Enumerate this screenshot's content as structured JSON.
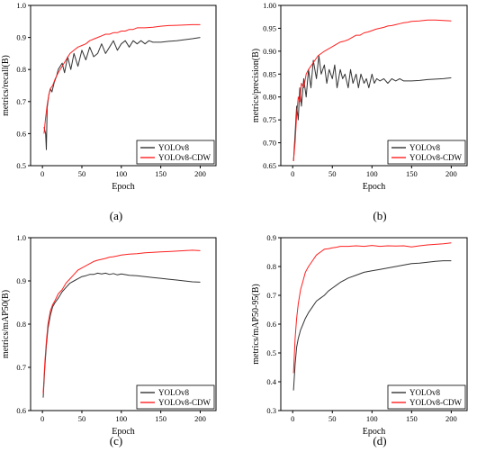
{
  "colors": {
    "yolov8": "#333333",
    "yolov8_cdw": "#ff2020",
    "axis": "#000000"
  },
  "chart_data": [
    {
      "type": "line",
      "panel_label": "(a)",
      "xlabel": "Epoch",
      "ylabel": "metrics/recall(B)",
      "xlim": [
        -15,
        220
      ],
      "ylim": [
        0.5,
        1.0
      ],
      "xticks": [
        0,
        50,
        100,
        150,
        200
      ],
      "xtick_labels": [
        "0",
        "50",
        "100",
        "150",
        "200"
      ],
      "yticks": [
        0.5,
        0.6,
        0.7,
        0.8,
        0.9,
        1.0
      ],
      "ytick_labels": [
        "0.5",
        "0.6",
        "0.7",
        "0.8",
        "0.9",
        "1.0"
      ],
      "legend_position": "bottom-right",
      "series": [
        {
          "name": "YOLOv8",
          "color": "#333333",
          "x": [
            2,
            4,
            5,
            6,
            8,
            10,
            12,
            15,
            18,
            20,
            25,
            28,
            32,
            36,
            40,
            45,
            50,
            55,
            60,
            65,
            70,
            75,
            80,
            85,
            90,
            95,
            100,
            105,
            110,
            115,
            120,
            125,
            130,
            135,
            140,
            150,
            160,
            170,
            180,
            190,
            200
          ],
          "y": [
            0.62,
            0.6,
            0.55,
            0.68,
            0.72,
            0.74,
            0.73,
            0.76,
            0.78,
            0.8,
            0.82,
            0.79,
            0.84,
            0.8,
            0.85,
            0.81,
            0.86,
            0.83,
            0.87,
            0.84,
            0.85,
            0.88,
            0.85,
            0.87,
            0.89,
            0.86,
            0.88,
            0.89,
            0.87,
            0.89,
            0.88,
            0.89,
            0.88,
            0.89,
            0.885,
            0.885,
            0.888,
            0.89,
            0.893,
            0.896,
            0.9
          ]
        },
        {
          "name": "YOLOv8-CDW",
          "color": "#ff2020",
          "x": [
            2,
            4,
            6,
            8,
            10,
            13,
            16,
            20,
            25,
            30,
            35,
            40,
            45,
            50,
            55,
            60,
            65,
            70,
            75,
            80,
            85,
            90,
            95,
            100,
            105,
            110,
            115,
            120,
            130,
            140,
            150,
            160,
            170,
            180,
            190,
            200
          ],
          "y": [
            0.6,
            0.65,
            0.69,
            0.72,
            0.74,
            0.75,
            0.77,
            0.79,
            0.81,
            0.83,
            0.85,
            0.86,
            0.87,
            0.875,
            0.88,
            0.89,
            0.895,
            0.9,
            0.905,
            0.91,
            0.91,
            0.915,
            0.915,
            0.92,
            0.92,
            0.925,
            0.925,
            0.93,
            0.93,
            0.932,
            0.935,
            0.937,
            0.938,
            0.939,
            0.94,
            0.94
          ]
        }
      ]
    },
    {
      "type": "line",
      "panel_label": "(b)",
      "xlabel": "Epoch",
      "ylabel": "metrics/precision(B)",
      "xlim": [
        -15,
        220
      ],
      "ylim": [
        0.65,
        1.0
      ],
      "xticks": [
        0,
        50,
        100,
        150,
        200
      ],
      "xtick_labels": [
        "0",
        "50",
        "100",
        "150",
        "200"
      ],
      "yticks": [
        0.65,
        0.7,
        0.75,
        0.8,
        0.85,
        0.9,
        0.95,
        1.0
      ],
      "ytick_labels": [
        "0.65",
        "0.70",
        "0.75",
        "0.80",
        "0.85",
        "0.90",
        "0.95",
        "1.00"
      ],
      "legend_position": "bottom-right",
      "series": [
        {
          "name": "YOLOv8",
          "color": "#333333",
          "x": [
            1,
            3,
            5,
            7,
            9,
            11,
            14,
            17,
            20,
            23,
            26,
            30,
            33,
            36,
            40,
            43,
            46,
            50,
            53,
            56,
            60,
            63,
            66,
            70,
            73,
            76,
            80,
            83,
            86,
            90,
            93,
            96,
            100,
            103,
            106,
            110,
            115,
            120,
            125,
            130,
            135,
            140,
            150,
            160,
            170,
            180,
            190,
            200
          ],
          "y": [
            0.66,
            0.72,
            0.78,
            0.75,
            0.82,
            0.78,
            0.84,
            0.8,
            0.86,
            0.82,
            0.88,
            0.84,
            0.89,
            0.85,
            0.87,
            0.83,
            0.86,
            0.84,
            0.87,
            0.82,
            0.86,
            0.84,
            0.85,
            0.82,
            0.86,
            0.83,
            0.85,
            0.82,
            0.85,
            0.83,
            0.84,
            0.82,
            0.85,
            0.83,
            0.84,
            0.835,
            0.84,
            0.83,
            0.84,
            0.835,
            0.84,
            0.835,
            0.835,
            0.836,
            0.838,
            0.839,
            0.84,
            0.842
          ]
        },
        {
          "name": "YOLOv8-CDW",
          "color": "#ff2020",
          "x": [
            1,
            3,
            5,
            7,
            9,
            11,
            14,
            17,
            20,
            24,
            28,
            32,
            36,
            40,
            45,
            50,
            55,
            60,
            65,
            70,
            75,
            80,
            85,
            90,
            95,
            100,
            105,
            110,
            115,
            120,
            125,
            130,
            135,
            140,
            145,
            150,
            160,
            170,
            180,
            190,
            200
          ],
          "y": [
            0.66,
            0.7,
            0.76,
            0.8,
            0.79,
            0.83,
            0.82,
            0.85,
            0.86,
            0.87,
            0.88,
            0.89,
            0.895,
            0.9,
            0.905,
            0.91,
            0.915,
            0.92,
            0.922,
            0.925,
            0.93,
            0.935,
            0.935,
            0.94,
            0.942,
            0.945,
            0.948,
            0.95,
            0.952,
            0.955,
            0.956,
            0.958,
            0.96,
            0.962,
            0.963,
            0.965,
            0.966,
            0.968,
            0.968,
            0.967,
            0.966
          ]
        }
      ]
    },
    {
      "type": "line",
      "panel_label": "(c)",
      "xlabel": "Epoch",
      "ylabel": "metrics/mAP50(B)",
      "xlim": [
        -15,
        220
      ],
      "ylim": [
        0.6,
        1.0
      ],
      "xticks": [
        0,
        50,
        100,
        150,
        200
      ],
      "xtick_labels": [
        "0",
        "50",
        "100",
        "150",
        "200"
      ],
      "yticks": [
        0.6,
        0.7,
        0.8,
        0.9,
        1.0
      ],
      "ytick_labels": [
        "0.6",
        "0.7",
        "0.8",
        "0.9",
        "1.0"
      ],
      "legend_position": "bottom-right",
      "series": [
        {
          "name": "YOLOv8",
          "color": "#333333",
          "x": [
            1,
            3,
            5,
            7,
            10,
            13,
            16,
            20,
            25,
            30,
            35,
            40,
            45,
            50,
            55,
            60,
            65,
            70,
            75,
            80,
            85,
            90,
            95,
            100,
            110,
            120,
            130,
            140,
            150,
            160,
            170,
            180,
            190,
            200
          ],
          "y": [
            0.63,
            0.7,
            0.75,
            0.79,
            0.82,
            0.84,
            0.85,
            0.86,
            0.875,
            0.885,
            0.895,
            0.9,
            0.905,
            0.91,
            0.912,
            0.915,
            0.915,
            0.918,
            0.916,
            0.918,
            0.915,
            0.917,
            0.914,
            0.916,
            0.913,
            0.912,
            0.91,
            0.908,
            0.906,
            0.904,
            0.902,
            0.9,
            0.898,
            0.897
          ]
        },
        {
          "name": "YOLOv8-CDW",
          "color": "#ff2020",
          "x": [
            1,
            3,
            5,
            7,
            10,
            13,
            16,
            20,
            25,
            30,
            35,
            40,
            45,
            50,
            55,
            60,
            65,
            70,
            75,
            80,
            85,
            90,
            95,
            100,
            110,
            120,
            130,
            140,
            150,
            160,
            170,
            180,
            190,
            200
          ],
          "y": [
            0.64,
            0.71,
            0.76,
            0.8,
            0.83,
            0.845,
            0.855,
            0.87,
            0.88,
            0.895,
            0.905,
            0.915,
            0.925,
            0.93,
            0.935,
            0.94,
            0.945,
            0.948,
            0.95,
            0.952,
            0.955,
            0.956,
            0.958,
            0.96,
            0.962,
            0.963,
            0.965,
            0.966,
            0.967,
            0.968,
            0.969,
            0.97,
            0.971,
            0.97
          ]
        }
      ]
    },
    {
      "type": "line",
      "panel_label": "(d)",
      "xlabel": "Epoch",
      "ylabel": "metrics/mAP50-95(B)",
      "xlim": [
        -15,
        220
      ],
      "ylim": [
        0.3,
        0.9
      ],
      "xticks": [
        0,
        50,
        100,
        150,
        200
      ],
      "xtick_labels": [
        "0",
        "50",
        "100",
        "150",
        "200"
      ],
      "yticks": [
        0.3,
        0.4,
        0.5,
        0.6,
        0.7,
        0.8,
        0.9
      ],
      "ytick_labels": [
        "0.3",
        "0.4",
        "0.5",
        "0.6",
        "0.7",
        "0.8",
        "0.9"
      ],
      "legend_position": "bottom-right",
      "series": [
        {
          "name": "YOLOv8",
          "color": "#333333",
          "x": [
            1,
            3,
            5,
            7,
            10,
            13,
            16,
            20,
            25,
            30,
            35,
            40,
            45,
            50,
            55,
            60,
            70,
            80,
            90,
            100,
            110,
            120,
            130,
            140,
            150,
            160,
            170,
            180,
            190,
            200
          ],
          "y": [
            0.37,
            0.46,
            0.52,
            0.55,
            0.58,
            0.6,
            0.62,
            0.64,
            0.66,
            0.68,
            0.69,
            0.7,
            0.715,
            0.725,
            0.735,
            0.745,
            0.76,
            0.77,
            0.78,
            0.785,
            0.79,
            0.795,
            0.8,
            0.805,
            0.81,
            0.812,
            0.815,
            0.818,
            0.82,
            0.82
          ]
        },
        {
          "name": "YOLOv8-CDW",
          "color": "#ff2020",
          "x": [
            1,
            3,
            5,
            7,
            10,
            13,
            16,
            20,
            25,
            30,
            35,
            40,
            45,
            50,
            55,
            60,
            70,
            80,
            90,
            100,
            110,
            120,
            130,
            140,
            150,
            160,
            170,
            180,
            190,
            200
          ],
          "y": [
            0.43,
            0.55,
            0.62,
            0.67,
            0.72,
            0.75,
            0.78,
            0.8,
            0.82,
            0.84,
            0.85,
            0.86,
            0.862,
            0.865,
            0.867,
            0.87,
            0.87,
            0.872,
            0.87,
            0.873,
            0.87,
            0.872,
            0.871,
            0.872,
            0.868,
            0.872,
            0.875,
            0.877,
            0.879,
            0.882
          ]
        }
      ]
    }
  ]
}
